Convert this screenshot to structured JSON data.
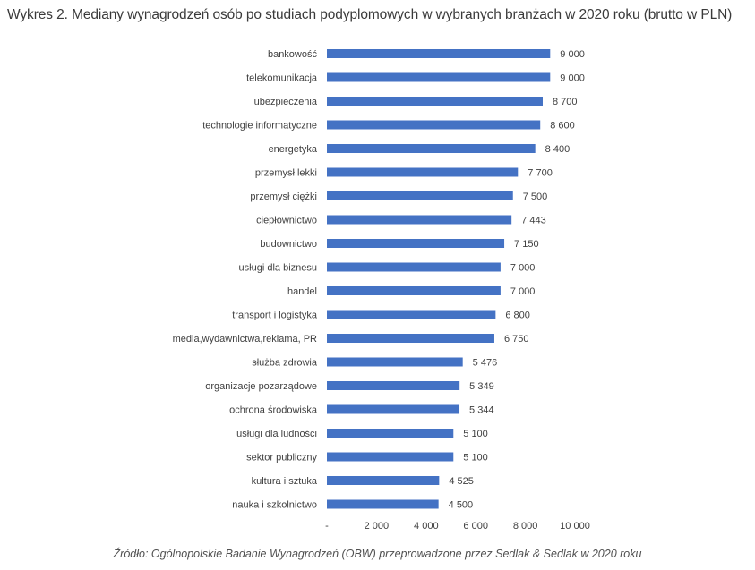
{
  "title": "Wykres 2. Mediany wynagrodzeń osób po studiach podyplomowych w wybranych branżach w 2020 roku (brutto w PLN)",
  "source": "Źródło: Ogólnopolskie Badanie Wynagrodzeń (OBW) przeprowadzone przez Sedlak & Sedlak w 2020 roku",
  "colors": {
    "bar": "#4472c4"
  },
  "chart_data": {
    "type": "bar",
    "orientation": "horizontal",
    "categories": [
      "bankowość",
      "telekomunikacja",
      "ubezpieczenia",
      "technologie informatyczne",
      "energetyka",
      "przemysł lekki",
      "przemysł ciężki",
      "ciepłownictwo",
      "budownictwo",
      "usługi dla biznesu",
      "handel",
      "transport i logistyka",
      "media,wydawnictwa,reklama, PR",
      "służba zdrowia",
      "organizacje pozarządowe",
      "ochrona środowiska",
      "usługi dla ludności",
      "sektor publiczny",
      "kultura i sztuka",
      "nauka i szkolnictwo"
    ],
    "values": [
      9000,
      9000,
      8700,
      8600,
      8400,
      7700,
      7500,
      7443,
      7150,
      7000,
      7000,
      6800,
      6750,
      5476,
      5349,
      5344,
      5100,
      5100,
      4525,
      4500
    ],
    "value_labels": [
      "9 000",
      "9 000",
      "8 700",
      "8 600",
      "8 400",
      "7 700",
      "7 500",
      "7 443",
      "7 150",
      "7 000",
      "7 000",
      "6 800",
      "6 750",
      "5 476",
      "5 349",
      "5 344",
      "5 100",
      "5 100",
      "4 525",
      "4 500"
    ],
    "xlim": [
      0,
      10000
    ],
    "xticks": [
      0,
      2000,
      4000,
      6000,
      8000,
      10000
    ],
    "xtick_labels": [
      "-",
      "2 000",
      "4 000",
      "6 000",
      "8 000",
      "10 000"
    ],
    "grid": false,
    "legend": "none"
  }
}
